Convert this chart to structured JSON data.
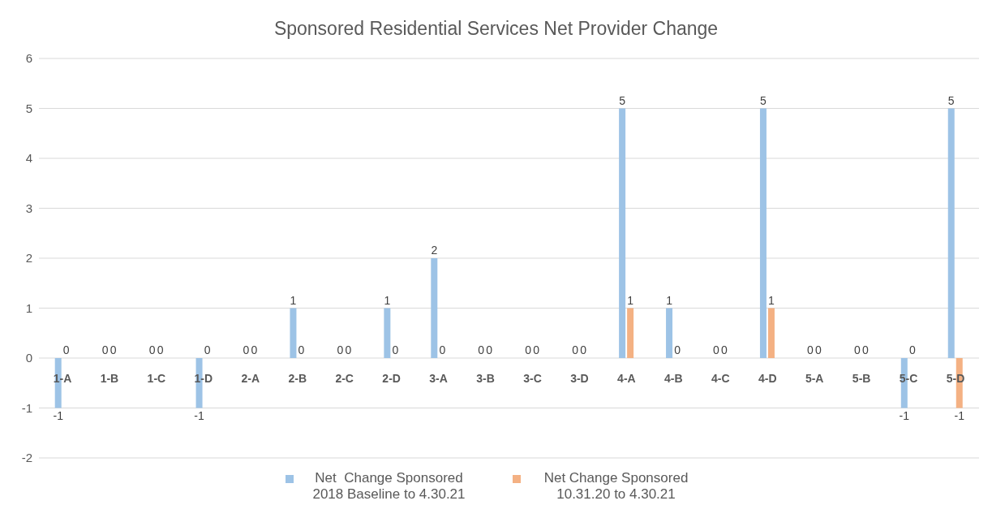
{
  "chart_data": {
    "type": "bar",
    "title": "Sponsored Residential Services Net Provider Change",
    "categories": [
      "1-A",
      "1-B",
      "1-C",
      "1-D",
      "2-A",
      "2-B",
      "2-C",
      "2-D",
      "3-A",
      "3-B",
      "3-C",
      "3-D",
      "4-A",
      "4-B",
      "4-C",
      "4-D",
      "5-A",
      "5-B",
      "5-C",
      "5-D"
    ],
    "series": [
      {
        "name": "Net  Change Sponsored 2018 Baseline to 4.30.21",
        "color": "#9dc3e6",
        "values": [
          -1,
          0,
          0,
          -1,
          0,
          1,
          0,
          1,
          2,
          0,
          0,
          0,
          5,
          1,
          0,
          5,
          0,
          0,
          -1,
          5
        ]
      },
      {
        "name": "Net Change Sponsored 10.31.20 to 4.30.21",
        "color": "#f4b183",
        "values": [
          0,
          0,
          0,
          0,
          0,
          0,
          0,
          0,
          0,
          0,
          0,
          0,
          1,
          0,
          0,
          1,
          0,
          0,
          0,
          -1
        ]
      }
    ],
    "ylim": [
      -2,
      6
    ],
    "yticks": [
      -2,
      -1,
      0,
      1,
      2,
      3,
      4,
      5,
      6
    ],
    "grid": "y",
    "legend": "bottom",
    "data_labels": true
  }
}
